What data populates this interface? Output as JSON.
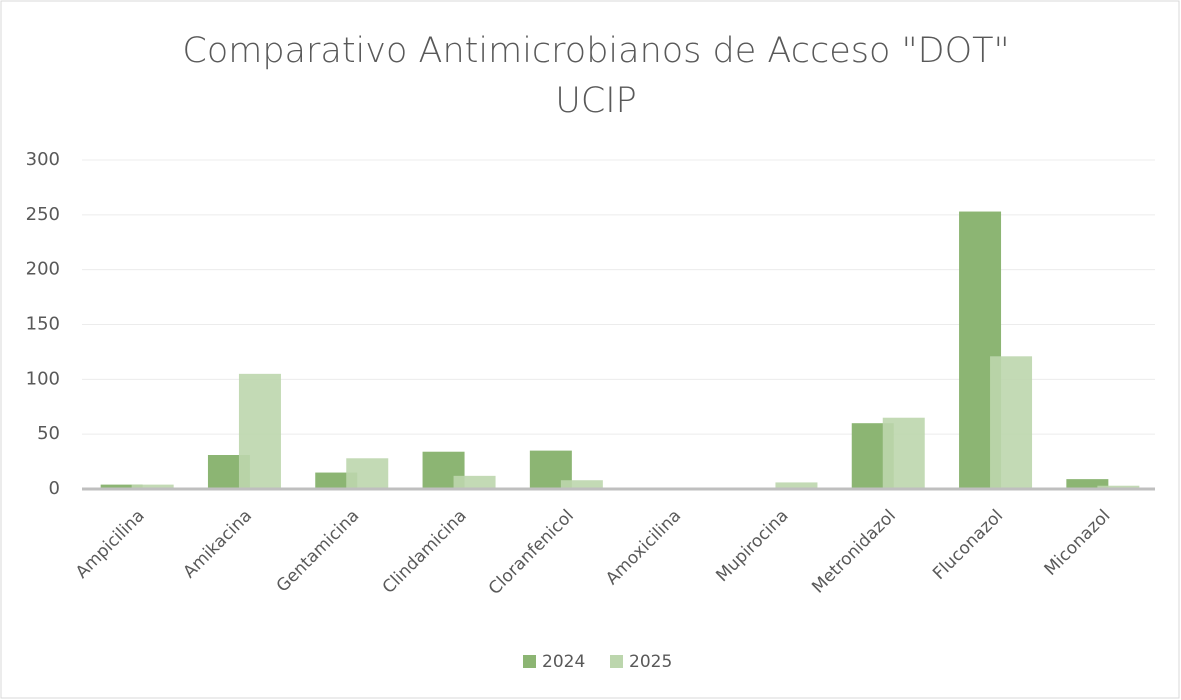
{
  "chart_data": {
    "type": "bar",
    "title": [
      "Comparativo Antimicrobianos de Acceso \"DOT\"",
      "UCIP"
    ],
    "categories": [
      "Ampicilina",
      "Amikacina",
      "Gentamicina",
      "Clindamicina",
      "Cloranfenicol",
      "Amoxicilina",
      "Mupirocina",
      "Metronidazol",
      "Fluconazol",
      "Miconazol"
    ],
    "series": [
      {
        "name": "2024",
        "color": "#8cb573",
        "values": [
          4,
          31,
          15,
          34,
          35,
          0,
          0,
          60,
          253,
          9
        ]
      },
      {
        "name": "2025",
        "color": "#bcd6ad",
        "values": [
          4,
          105,
          28,
          12,
          8,
          0,
          6,
          65,
          121,
          3
        ]
      }
    ],
    "ylim": [
      0,
      300
    ],
    "yticks": [
      0,
      50,
      100,
      150,
      200,
      250,
      300
    ],
    "grid": true,
    "legend": "bottom"
  }
}
